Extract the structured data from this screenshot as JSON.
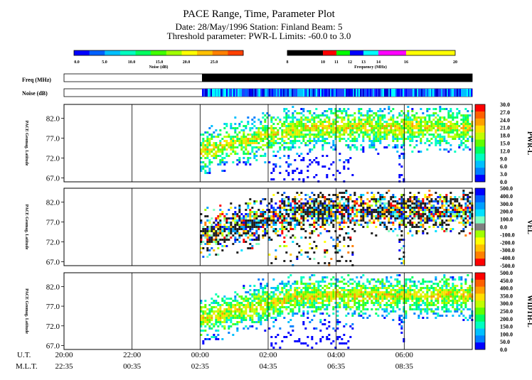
{
  "header": {
    "title": "PACE Range, Time, Parameter Plot",
    "subtitle_line1": "Date: 28/May/1996  Station: Finland  Beam:  5",
    "subtitle_line2": "Threshold parameter: PWR-L      Limits: -60.0 to  3.0"
  },
  "noise_scale": {
    "label": "Noise (dB)",
    "ticks": [
      "0.0",
      "5.0",
      "10.0",
      "15.0",
      "20.0",
      "25.0"
    ],
    "colors": [
      "#0000ff",
      "#0060ff",
      "#00c0ff",
      "#00ffc0",
      "#00ff60",
      "#40ff00",
      "#a0ff00",
      "#ffff00",
      "#ffc000",
      "#ff8000",
      "#ff4000"
    ]
  },
  "freq_scale": {
    "label": "Frequency (MHz)",
    "ticks": [
      "8",
      "10",
      "11",
      "12",
      "13",
      "14",
      "16",
      "20"
    ],
    "colors": [
      "#000000",
      "#ff0000",
      "#00ff00",
      "#0000ff",
      "#00ffff",
      "#ff00ff",
      "#ffff00"
    ]
  },
  "status_rows": {
    "freq_label": "Freq (MHz)",
    "noise_label": "Noise (dB)"
  },
  "chart_data": [
    {
      "type": "heatmap",
      "parameter": "PWR-L",
      "ylabel": "PACE Geomag. Latitude",
      "ylim": [
        66.0,
        85.5
      ],
      "y_ticks": [
        "82.0",
        "77.0",
        "72.0",
        "67.0"
      ],
      "colorbar_label": "PWR-L",
      "colorbar_ticks": [
        "30.0",
        "27.0",
        "24.0",
        "21.0",
        "18.0",
        "15.0",
        "12.0",
        "9.0",
        "6.0",
        "3.0",
        "0.0"
      ],
      "colorbar_colors": [
        "#ff0000",
        "#ff6000",
        "#ffa000",
        "#ffe000",
        "#c0ff00",
        "#60ff00",
        "#00ff60",
        "#00ffc0",
        "#00c0ff",
        "#0080ff",
        "#0000ff"
      ]
    },
    {
      "type": "heatmap",
      "parameter": "VEL",
      "ylabel": "PACE Geomag. Latitude",
      "ylim": [
        66.0,
        85.5
      ],
      "y_ticks": [
        "82.0",
        "77.0",
        "72.0",
        "67.0"
      ],
      "colorbar_label": "VEL",
      "colorbar_ticks": [
        "500.0",
        "400.0",
        "300.0",
        "200.0",
        "100.0",
        "0.0",
        "-100.0",
        "-200.0",
        "-300.0",
        "-400.0",
        "-500.0"
      ],
      "colorbar_colors": [
        "#0000ff",
        "#0060ff",
        "#00a0ff",
        "#00e0ff",
        "#80ffc0",
        "#808080",
        "#a0ff00",
        "#ffff00",
        "#ffc000",
        "#ff8000",
        "#ff0000"
      ]
    },
    {
      "type": "heatmap",
      "parameter": "WIDTH-L",
      "ylabel": "PACE Geomag. Latitude",
      "ylim": [
        66.0,
        85.5
      ],
      "y_ticks": [
        "82.0",
        "77.0",
        "72.0",
        "67.0"
      ],
      "colorbar_label": "WIDTH-L",
      "colorbar_ticks": [
        "500.0",
        "450.0",
        "400.0",
        "350.0",
        "300.0",
        "250.0",
        "200.0",
        "150.0",
        "100.0",
        "50.0",
        "0.0"
      ],
      "colorbar_colors": [
        "#ff0000",
        "#ff6000",
        "#ffa000",
        "#ffe000",
        "#c0ff00",
        "#60ff00",
        "#00ff60",
        "#00ffc0",
        "#00c0ff",
        "#0080ff",
        "#0000ff"
      ]
    }
  ],
  "time_axis": {
    "ut_label": "U.T.",
    "mlt_label": "M.L.T.",
    "ut_ticks": [
      "20:00",
      "22:00",
      "00:00",
      "02:00",
      "04:00",
      "06:00"
    ],
    "mlt_ticks": [
      "22:35",
      "00:35",
      "02:35",
      "04:35",
      "06:35",
      "08:35"
    ]
  }
}
